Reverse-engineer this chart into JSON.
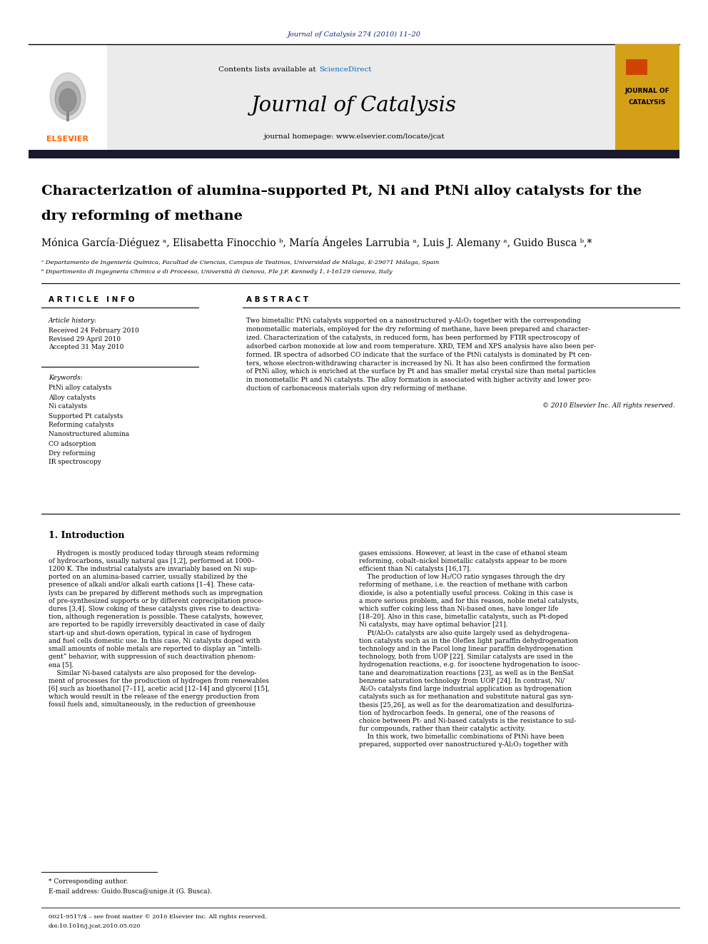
{
  "page_width": 9.92,
  "page_height": 13.23,
  "bg_color": "#ffffff",
  "header_journal_ref": "Journal of Catalysis 274 (2010) 11–20",
  "header_journal_ref_color": "#1a237e",
  "journal_name": "Journal of Catalysis",
  "contents_text": "Contents lists available at ",
  "sciencedirect_text": "ScienceDirect",
  "sciencedirect_color": "#0066cc",
  "homepage_text": "journal homepage: www.elsevier.com/locate/jcat",
  "elsevier_color": "#ff6600",
  "elsevier_text": "ELSEVIER",
  "journal_box_color": "#d4a017",
  "journal_box_text1": "JOURNAL OF",
  "journal_box_text2": "CATALYSIS",
  "header_bar_color": "#1a1a2e",
  "article_title_line1": "Characterization of alumina–supported Pt, Ni and PtNi alloy catalysts for the",
  "article_title_line2": "dry reforming of methane",
  "authors": "Mónica García-Diéguez ᵃ, Elisabetta Finocchio ᵇ, María Ángeles Larrubia ᵃ, Luis J. Alemany ᵃ, Guido Busca ᵇ,*",
  "affil_a": "ᵃ Departamento de Ingeniería Química, Facultad de Ciencias, Campus de Teatinos, Universidad de Málaga, E-29071 Málaga, Spain",
  "affil_b": "ᵇ Dipartimento di Ingegneria Chimica e di Processo, Università di Genova, P.le J.F. Kennedy 1, I-16129 Genova, Italy",
  "article_info_title": "A R T I C L E   I N F O",
  "abstract_title": "A B S T R A C T",
  "article_history_label": "Article history:",
  "received": "Received 24 February 2010",
  "revised": "Revised 29 April 2010",
  "accepted": "Accepted 31 May 2010",
  "keywords_label": "Keywords:",
  "keywords": [
    "PtNi alloy catalysts",
    "Alloy catalysts",
    "Ni catalysts",
    "Supported Pt catalysts",
    "Reforming catalysts",
    "Nanostructured alumina",
    "CO adsorption",
    "Dry reforming",
    "IR spectroscopy"
  ],
  "abstract_lines": [
    "Two bimetallic PtNi catalysts supported on a nanostructured γ-Al₂O₃ together with the corresponding",
    "monometallic materials, employed for the dry reforming of methane, have been prepared and character-",
    "ized. Characterization of the catalysts, in reduced form, has been performed by FTIR spectroscopy of",
    "adsorbed carbon monoxide at low and room temperature. XRD, TEM and XPS analysis have also been per-",
    "formed. IR spectra of adsorbed CO indicate that the surface of the PtNi catalysts is dominated by Pt cen-",
    "ters, whose electron-withdrawing character is increased by Ni. It has also been confirmed the formation",
    "of PtNi alloy, which is enriched at the surface by Pt and has smaller metal crystal size than metal particles",
    "in monometallic Pt and Ni catalysts. The alloy formation is associated with higher activity and lower pro-",
    "duction of carbonaceous materials upon dry reforming of methane."
  ],
  "copyright_text": "© 2010 Elsevier Inc. All rights reserved.",
  "intro_title": "1. Introduction",
  "col1_lines": [
    "    Hydrogen is mostly produced today through steam reforming",
    "of hydrocarbons, usually natural gas [1,2], performed at 1000–",
    "1200 K. The industrial catalysts are invariably based on Ni sup-",
    "ported on an alumina-based carrier, usually stabilized by the",
    "presence of alkali and/or alkali earth cations [1–4]. These cata-",
    "lysts can be prepared by different methods such as impregnation",
    "of pre-synthesized supports or by different coprecipitation proce-",
    "dures [3,4]. Slow coking of these catalysts gives rise to deactiva-",
    "tion, although regeneration is possible. These catalysts, however,",
    "are reported to be rapidly irreversibly deactivated in case of daily",
    "start-up and shut-down operation, typical in case of hydrogen",
    "and fuel cells domestic use. In this case, Ni catalysts doped with",
    "small amounts of noble metals are reported to display an “intelli-",
    "gent” behavior, with suppression of such deactivation phenom-",
    "ena [5].",
    "    Similar Ni-based catalysts are also proposed for the develop-",
    "ment of processes for the production of hydrogen from renewables",
    "[6] such as bioethanol [7–11], acetic acid [12–14] and glycerol [15],",
    "which would result in the release of the energy production from",
    "fossil fuels and, simultaneously, in the reduction of greenhouse"
  ],
  "col2_lines": [
    "gases emissions. However, at least in the case of ethanol steam",
    "reforming, cobalt–nickel bimetallic catalysts appear to be more",
    "efficient than Ni catalysts [16,17].",
    "    The production of low H₂/CO ratio syngases through the dry",
    "reforming of methane, i.e. the reaction of methane with carbon",
    "dioxide, is also a potentially useful process. Coking in this case is",
    "a more serious problem, and for this reason, noble metal catalysts,",
    "which suffer coking less than Ni-based ones, have longer life",
    "[18–20]. Also in this case, bimetallic catalysts, such as Pt-doped",
    "Ni catalysts, may have optimal behavior [21].",
    "    Pt/Al₂O₃ catalysts are also quite largely used as dehydrogena-",
    "tion catalysts such as in the Oleflex light paraffin dehydrogenation",
    "technology and in the Pacol long linear paraffin dehydrogenation",
    "technology, both from UOP [22]. Similar catalysts are used in the",
    "hydrogenation reactions, e.g. for isooctene hydrogenation to isooc-",
    "tane and dearomatization reactions [23], as well as in the BenSat",
    "benzene saturation technology from UOP [24]. In contrast, Ni/",
    "Al₂O₃ catalysts find large industrial application as hydrogenation",
    "catalysts such as for methanation and substitute natural gas syn-",
    "thesis [25,26], as well as for the dearomatization and desulfuriza-",
    "tion of hydrocarbon feeds. In general, one of the reasons of",
    "choice between Pt- and Ni-based catalysts is the resistance to sul-",
    "fur compounds, rather than their catalytic activity.",
    "    In this work, two bimetallic combinations of PtNi have been",
    "prepared, supported over nanostructured γ-Al₂O₃ together with"
  ],
  "footnote_star": "* Corresponding author.",
  "footnote_email": "E-mail address: Guido.Busca@unige.it (G. Busca).",
  "footer_issn": "0021-9517/$ – see front matter © 2010 Elsevier Inc. All rights reserved.",
  "footer_doi": "doi:10.1016/j.jcat.2010.05.020"
}
